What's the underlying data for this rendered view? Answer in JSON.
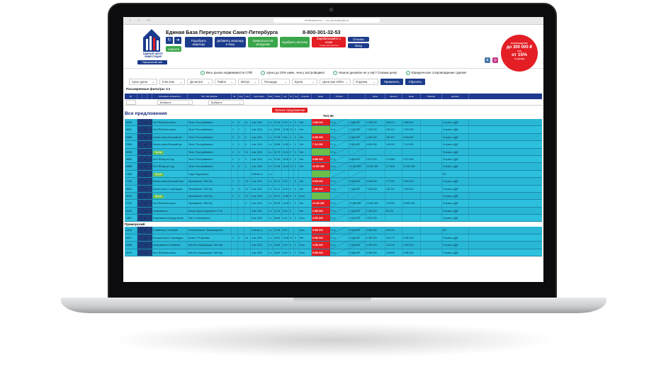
{
  "browser": {
    "url": "Небезопасно — ecr-pereustupki.ru"
  },
  "site": {
    "brand": "Единая База Переуступок Санкт-Петербурга",
    "phone": "8-800-301-32-53",
    "logo_text": "ЕДИНЫЙ ЦЕНТР ИНВЕСТИЦИЙ",
    "logo_sub": "Официальный сайт",
    "nav": [
      {
        "label": "Новости",
        "color": "#3aa64a"
      },
      {
        "label": "Подобрать квартиру",
        "color": "#1c3c8c"
      },
      {
        "label": "Добавить квартиру в базу",
        "color": "#1c3c8c"
      },
      {
        "label": "Записаться на экскурсию",
        "color": "#3aa64a"
      },
      {
        "label": "Одобрить ипотеку",
        "color": "#3aa64a"
      },
      {
        "label": "Зарабатывайте с нами",
        "sub": "только для агентов",
        "color": "#e31e24"
      },
      {
        "label": "Отзывы",
        "color": "#1c3c8c"
      },
      {
        "label": "Вход",
        "color": "#1c3c8c"
      }
    ],
    "promo": {
      "line1": "вознаграждение",
      "line2": "до 300 000 ₽",
      "line3": "или",
      "line4": "от 15%",
      "line5": "от дохода"
    }
  },
  "benefits": [
    "Весь рынок недвижимости СПб!",
    "Цены до 20% ниже, чем у застройщика!",
    "Нашли дешевле не у нас? Снизим цену!",
    "Юридическое сопровождение сделки!"
  ],
  "filters": {
    "selects": [
      "Срок сдачи",
      "К-во ком.",
      "До метро",
      "Район",
      "Метро",
      "Площадь",
      "Кухня",
      "Цена при 100%",
      "Отделка"
    ],
    "apply": "Применить",
    "reset": "Сбросить",
    "extended": "Расширенные фильтры ∨∧"
  },
  "table": {
    "headers": [
      "ID",
      "",
      "",
      "",
      "Ключевые особенности",
      "ЖК / Застройщик",
      "Эт.",
      "Кор",
      "Сек",
      "Срок сдачи",
      "Ком",
      "Площ",
      "Кух",
      "Эт",
      "Сд",
      "Отделка",
      "Цена",
      "Уступка",
      "",
      "Цена",
      "Цена м²",
      "Цена",
      "Разница",
      "Договор"
    ],
    "filter_select1": "Выберите",
    "filter_select2": "Выберите",
    "all_offers": "Все предложения",
    "best_offer": "Лучшее предложение",
    "top30": "Топ-30",
    "district": "Приморский",
    "rows": [
      {
        "id": "20063",
        "feat": "Без ПВ,Бизнес-класс",
        "badge": "",
        "jk": "Terra / Росстройинвест",
        "et": "2",
        "kor": "2",
        "sek": "11",
        "srok": "4 кв. 2021",
        "kom": "1 к",
        "pl": "23.78",
        "kuh": "0.00",
        "e2": "4",
        "sd": "0",
        "otd": "Нет",
        "price": "4 816 000",
        "u1": "0 / р",
        "u2": "4 168 000",
        "c1": "206 472",
        "c2": "2 758 000",
        "c3": "4 089 000",
        "dog": "Уступка с ДДУ"
      },
      {
        "id": "33061",
        "feat": "Без ПВ,Бизнес-класс",
        "badge": "",
        "jk": "Terra / Росстройинвест",
        "et": "2",
        "kor": "1",
        "sek": "1",
        "srok": "3 кв. 2021",
        "kom": "1 к",
        "pl": "36.90",
        "kuh": "10.25",
        "e2": "10",
        "sd": "0",
        "otd": "Нет",
        "price": "",
        "u1": "0 / р",
        "u2": "7 100 000",
        "c1": "192 412",
        "c2": "7 100 000",
        "c3": "7 162 000",
        "dog": "Уступка с ДДУ"
      },
      {
        "id": "20586",
        "feat": "Бизнес-класс,Больший кух",
        "badge": "",
        "jk": "Terra / Росстройинвест",
        "et": "2",
        "kor": "1",
        "sek": "2",
        "srok": "4 кв. 2021",
        "kom": "1 к",
        "pl": "27.28",
        "kuh": "0.00",
        "e2": "4",
        "sd": "0",
        "otd": "Нет",
        "price": "5 000 000",
        "u1": "0 / р",
        "u2": "4 946 000",
        "c1": "181 597",
        "c2": "4 946 000",
        "c3": "5 006 000",
        "dog": "Уступка с ДДУ"
      },
      {
        "id": "22383",
        "feat": "Бизнес-класс,Больший кух",
        "badge": "",
        "jk": "Terra / Росстройинвест",
        "et": "1",
        "kor": "1",
        "sek": "8",
        "srok": "4 кв. 2021",
        "kom": "1 к",
        "pl": "38.86",
        "kuh": "11.55",
        "e2": "4",
        "sd": "0",
        "otd": "Нет",
        "price": "7 113 000",
        "u1": "0 / р",
        "u2": "5 800 000",
        "c1": "149 253",
        "c2": "5 800 000",
        "c3": "7 113 000",
        "dog": "Уступка с ДДУ"
      },
      {
        "id": "21058",
        "feat": "",
        "badge": "Бронь",
        "jk": "Terra / Росстройинвест",
        "et": "2",
        "kor": "2",
        "sek": "10",
        "srok": "4 кв. 2021",
        "kom": "2 к",
        "pl": "62.72",
        "kuh": "14.21",
        "e2": "2",
        "sd": "0",
        "otd": "Нет",
        "price": "",
        "u1": "0 / р",
        "u2": "",
        "c1": "",
        "c2": "",
        "c3": "",
        "dog": "Уступка с ДДУ"
      },
      {
        "id": "28698",
        "feat": "Без ПВ,Вид на Сад",
        "badge": "",
        "jk": "Terra / Росстройинвест",
        "et": "1",
        "kor": "1",
        "sek": "3",
        "srok": "4 кв. 2021",
        "kom": "2 к",
        "pl": "57.80",
        "kuh": "16.00",
        "e2": "8",
        "sd": "0",
        "otd": "Нет",
        "price": "9 850 000",
        "u1": "0 / р",
        "u2": "9 850 000",
        "c1": "170 685",
        "c2": "9 871 000",
        "c3": "9 871 000",
        "dog": "Уступка с ДДУ"
      },
      {
        "id": "20588",
        "feat": "Без ПВ,Вид на Сад",
        "badge": "",
        "jk": "Terra / Росстройинвест",
        "et": "2",
        "kor": "2",
        "sek": "4",
        "srok": "4 кв. 2021",
        "kom": "2 к",
        "pl": "57.36",
        "kuh": "16.14",
        "e2": "10",
        "sd": "0",
        "otd": "Нет",
        "price": "10 200 000",
        "u1": "0 / р",
        "u2": "10 200 000",
        "c1": "177 825",
        "c2": "10 200 000",
        "c3": "10 200 000",
        "dog": "Уступка с ДДУ"
      },
      {
        "id": "17838",
        "feat": "",
        "badge": "Бронь",
        "jk": "Yoga / ЛидерГрупп",
        "et": "",
        "kor": "",
        "sek": "",
        "srok": "Собств-ть",
        "kom": "1 к",
        "pl": "",
        "kuh": "",
        "e2": "",
        "sd": "",
        "otd": "",
        "price": "",
        "u1": "",
        "u2": "",
        "c1": "",
        "c2": "",
        "c3": "",
        "dog": "ИП"
      },
      {
        "id": "17218",
        "feat": "Бизнес-класс,Больший Балк",
        "badge": "",
        "jk": "Притяжение / Sell City",
        "et": "1",
        "kor": "1",
        "sek": "1,5",
        "srok": "2 кв. 2021",
        "kom": "1 к",
        "pl": "31.12",
        "kuh": "0.00",
        "e2": "7",
        "sd": "0",
        "otd": "Нет",
        "price": "5 516 000",
        "u1": "0 / р",
        "u2": "5 516 000",
        "c1": "177 057",
        "c2": "5 516 000",
        "c3": "5 516 000",
        "dog": "Уступка с ДДУ"
      },
      {
        "id": "18560",
        "feat": "Бизнес-класс,С переводом",
        "badge": "",
        "jk": "Притяжение / Sell City",
        "et": "2",
        "kor": "5",
        "sek": "5,2",
        "srok": "2 кв. 2021",
        "kom": "1 к",
        "pl": "41.11",
        "kuh": "11.61",
        "e2": "6",
        "sd": "0",
        "otd": "Нет",
        "price": "7 450 000",
        "u1": "0 / р",
        "u2": "7 450 000",
        "c1": "181 222",
        "c2": "7 649 616",
        "c3": "7 449 000",
        "dog": "Уступка с ДДУ"
      },
      {
        "id": "18730",
        "feat": "",
        "badge": "Бронь",
        "jk": "Притяжение / Sell City",
        "et": "2",
        "kor": "3",
        "sek": "3,2",
        "srok": "2 кв. 2021",
        "kom": "2 к",
        "pl": "62.47",
        "kuh": "12.80",
        "e2": "6",
        "sd": "0",
        "otd": "Есть",
        "price": "",
        "u1": "",
        "u2": "",
        "c1": "",
        "c2": "",
        "c3": "",
        "dog": "Уступка с ДДУ"
      },
      {
        "id": "37115",
        "feat": "Без ПВ,Бизнес-класс",
        "badge": "",
        "jk": "Притяжение / Sell City",
        "et": "",
        "kor": "",
        "sek": "4",
        "srok": "2 кв. 2021",
        "kom": "2 к",
        "pl": "59.25",
        "kuh": "10.02",
        "e2": "3",
        "sd": "0",
        "otd": "Нет",
        "price": "10 410 000",
        "u1": "0 / р",
        "u2": "10 500 000",
        "c1": "176 962",
        "c2": "10 500 000",
        "c3": "10 500 000",
        "dog": "Уступка с ДДУ"
      },
      {
        "id": "21203",
        "feat": "Апартаменты",
        "badge": "",
        "jk": "Avenue Apart на Дыбенко / P-М",
        "et": "",
        "kor": "",
        "sek": "",
        "srok": "3 кв. 2021",
        "kom": "1 к",
        "pl": "24.75",
        "kuh": "0.00",
        "e2": "8",
        "sd": "",
        "otd": "Нет",
        "price": "2 400 000",
        "u1": "0 / р",
        "u2": "2 400 000",
        "c1": "96 475",
        "c2": "2 400 000",
        "c3": "",
        "dog": "Уступка с ДДУ"
      },
      {
        "id": "14857",
        "feat": "Апартаменты,Аренда,Балко",
        "badge": "",
        "jk": "Valo / Lemminkainen",
        "et": "",
        "kor": "",
        "sek": "",
        "srok": "3 кв. 2021",
        "kom": "1 к",
        "pl": "28.59",
        "kuh": "0.00",
        "e2": "5",
        "sd": "0",
        "otd": "Есть",
        "price": "4 570 000",
        "u1": "0 / р",
        "u2": "4 570 000",
        "c1": "",
        "c2": "4 570 000",
        "c3": "",
        "dog": "Уступка с ДДУ"
      },
      {
        "id": "21283",
        "feat": "С мебелью,С техникой",
        "badge": "",
        "jk": "Собственность / Коммандитная",
        "et": "",
        "kor": "",
        "sek": "",
        "srok": "Собств-ть",
        "kom": "1 к",
        "pl": "37.49",
        "kuh": "8.20",
        "e2": "",
        "sd": "",
        "otd": "Есть",
        "price": "5 500 000",
        "u1": "0 / р",
        "u2": "5 500 000",
        "c1": "150 091",
        "c2": "5 500 000",
        "c3": "",
        "dog": "ИП"
      },
      {
        "id": "66437",
        "feat": "Больший кухн,С переводом",
        "badge": "",
        "jk": "Amber / ГК Арсенал",
        "et": "2",
        "kor": "2",
        "sek": "16",
        "srok": "4 кв. 2021",
        "kom": "1 к",
        "pl": "45.51",
        "kuh": "14.00",
        "e2": "13",
        "sd": "0",
        "otd": "Нет",
        "price": "6 930 000",
        "u1": "0 / р",
        "u2": "6 930 000",
        "c1": "152 274",
        "c2": "6 930 000",
        "c3": "6 930 000",
        "dog": "Уступка с ДДУ"
      },
      {
        "id": "20838",
        "feat": "Апартаменты,С мебелью",
        "badge": "",
        "jk": "ArtLine в Приморском / Sell City",
        "et": "",
        "kor": "",
        "sek": "",
        "srok": "3 кв. 2021",
        "kom": "1 к",
        "pl": "34.59",
        "kuh": "0.00",
        "e2": "5",
        "sd": "0",
        "otd": "Есть",
        "price": "4 200 000",
        "u1": "0 / р",
        "u2": "4 200 000",
        "c1": "121 415",
        "c2": "4 200 000",
        "c3": "4 200 000",
        "dog": "Уступка с ДДУ"
      },
      {
        "id": "32075",
        "feat": "Без ПВ,Бизнес-класс",
        "badge": "",
        "jk": "ArtLine в Приморском / Sell City",
        "et": "",
        "kor": "",
        "sek": "",
        "srok": "4 кв. 2020",
        "kom": "1 к",
        "pl": "38.60",
        "kuh": "0.00",
        "e2": "9",
        "sd": "0",
        "otd": "Есть",
        "price": "5 050 000",
        "u1": "0 / р",
        "u2": "5 050 000",
        "c1": "130 829",
        "c2": "5 050 000",
        "c3": "5 050 000",
        "dog": "Уступка с ДДУ"
      }
    ]
  }
}
